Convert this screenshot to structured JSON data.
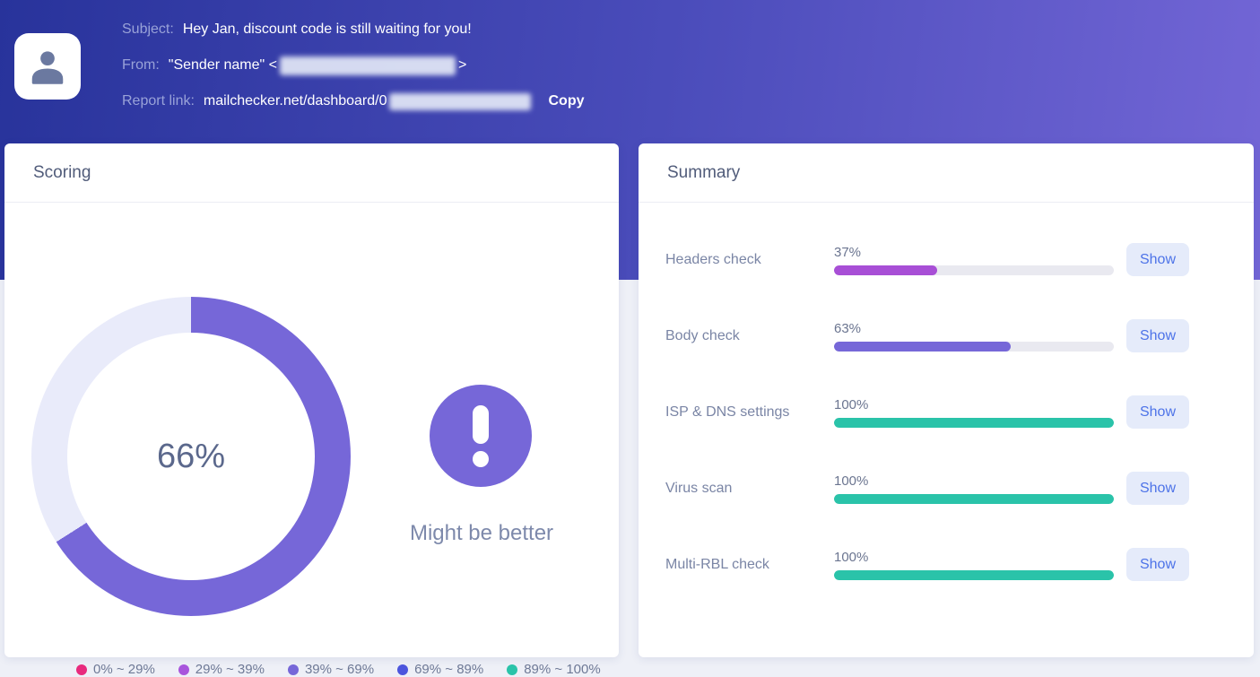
{
  "header": {
    "subject_label": "Subject:",
    "subject": "Hey Jan, discount code is still waiting for you!",
    "from_label": "From:",
    "from_name": "\"Sender name\" <",
    "from_close": ">",
    "report_label": "Report link:",
    "report_link": "mailchecker.net/dashboard/0",
    "copy_label": "Copy",
    "avatar_icon": "person-icon"
  },
  "scoring": {
    "title": "Scoring",
    "score": "66%",
    "verdict": "Might be better",
    "warning_icon": "exclamation-icon",
    "legend": [
      {
        "label": "0% ~ 29%",
        "color": "#e82a7d"
      },
      {
        "label": "29% ~ 39%",
        "color": "#a855dc"
      },
      {
        "label": "39% ~ 69%",
        "color": "#7667d8"
      },
      {
        "label": "69% ~ 89%",
        "color": "#4c55dd"
      },
      {
        "label": "89% ~ 100%",
        "color": "#2ac3a9"
      }
    ]
  },
  "summary": {
    "title": "Summary",
    "rows": [
      {
        "label": "Headers check",
        "value": "37%",
        "percent": 37,
        "color": "#a84fd6",
        "action": "Show"
      },
      {
        "label": "Body check",
        "value": "63%",
        "percent": 63,
        "color": "#7667d8",
        "action": "Show"
      },
      {
        "label": "ISP & DNS settings",
        "value": "100%",
        "percent": 100,
        "color": "#2ac3a9",
        "action": "Show"
      },
      {
        "label": "Virus scan",
        "value": "100%",
        "percent": 100,
        "color": "#2ac3a9",
        "action": "Show"
      },
      {
        "label": "Multi-RBL check",
        "value": "100%",
        "percent": 100,
        "color": "#2ac3a9",
        "action": "Show"
      }
    ]
  },
  "chart_data": {
    "type": "pie",
    "title": "Scoring",
    "labels": [
      "score",
      "remainder"
    ],
    "values": [
      66,
      34
    ],
    "value": 66,
    "display": "66%",
    "color": "#7667d8",
    "track_color": "#e9ebfa",
    "annotation": "Might be better",
    "legend_position": "bottom"
  },
  "colors": {
    "hero_gradient_start": "#28339b",
    "hero_gradient_end": "#7366d6",
    "page_background": "#eef0f7",
    "show_button_bg": "#e5ebfa",
    "show_button_text": "#4d73e8"
  }
}
